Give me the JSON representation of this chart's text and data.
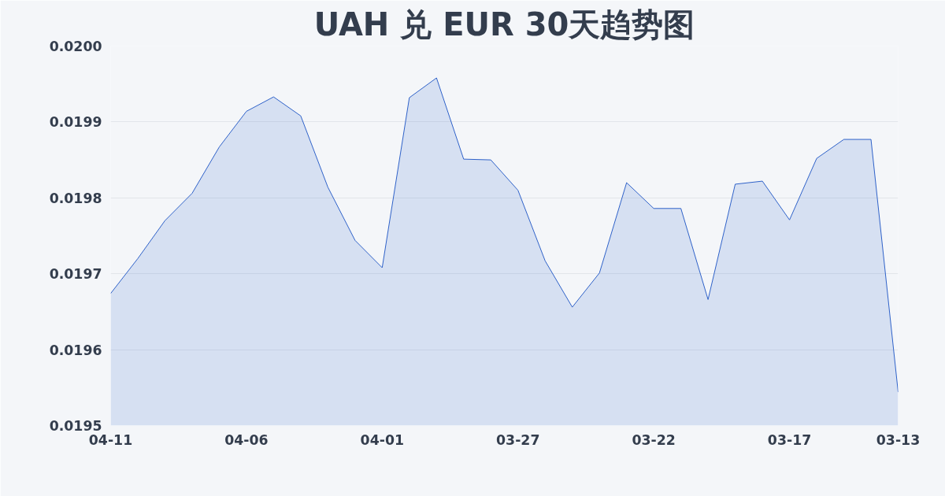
{
  "chart_data": {
    "type": "area",
    "title": "UAH 兑 EUR 30天趋势图",
    "categories": [
      "04-11",
      null,
      null,
      null,
      null,
      "04-06",
      null,
      null,
      null,
      null,
      "04-01",
      null,
      null,
      null,
      null,
      "03-27",
      null,
      null,
      null,
      null,
      "03-22",
      null,
      null,
      null,
      null,
      "03-17",
      null,
      null,
      null,
      "03-13"
    ],
    "series": [
      {
        "color": "#2f62c9",
        "values": [
          0.019674,
          0.01972,
          0.01977,
          0.019806,
          0.019867,
          0.019914,
          0.019933,
          0.019908,
          0.019814,
          0.019744,
          0.019708,
          0.019932,
          0.019958,
          0.019851,
          0.01985,
          0.01981,
          0.019717,
          0.019656,
          0.019701,
          0.01982,
          0.019786,
          0.019786,
          0.019666,
          0.019818,
          0.019822,
          0.019771,
          0.019852,
          0.019877,
          0.019877,
          0.019544
        ]
      }
    ],
    "ylim": [
      0.0195,
      0.02
    ],
    "yticks": [
      0.0195,
      0.0196,
      0.0197,
      0.0198,
      0.0199,
      {
        "value": 0.02,
        "label": "0.0200"
      }
    ],
    "grid": "y"
  }
}
